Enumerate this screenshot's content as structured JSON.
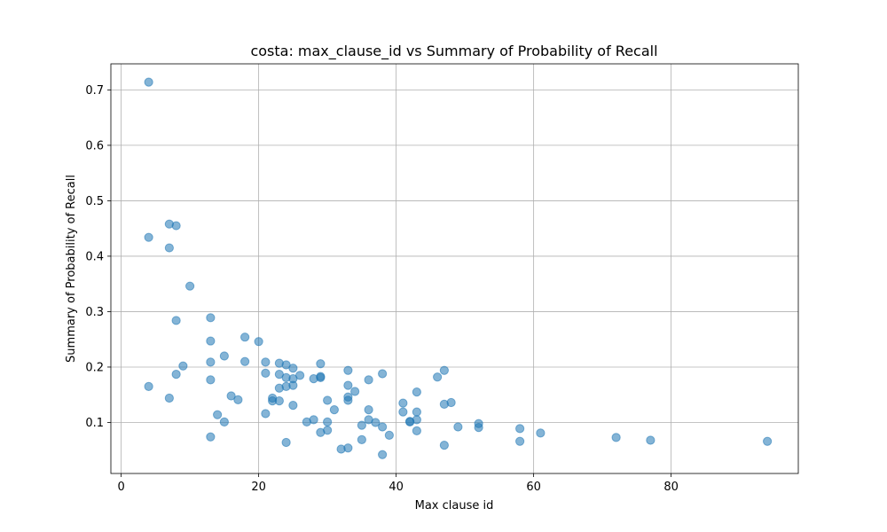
{
  "chart_data": {
    "type": "scatter",
    "title": "costa: max_clause_id vs Summary of Probability of Recall",
    "xlabel": "Max clause id",
    "ylabel": "Summary of Probability of Recall",
    "xlim": [
      -1.5,
      98.5
    ],
    "ylim": [
      0.008,
      0.747
    ],
    "xticks": [
      0,
      20,
      40,
      60,
      80
    ],
    "yticks": [
      0.1,
      0.2,
      0.3,
      0.4,
      0.5,
      0.6,
      0.7
    ],
    "grid": true,
    "marker_color": "#1f77b4",
    "marker_alpha": 0.55,
    "points": [
      {
        "x": 4,
        "y": 0.714
      },
      {
        "x": 4,
        "y": 0.434
      },
      {
        "x": 4,
        "y": 0.165
      },
      {
        "x": 7,
        "y": 0.458
      },
      {
        "x": 7,
        "y": 0.415
      },
      {
        "x": 7,
        "y": 0.144
      },
      {
        "x": 8,
        "y": 0.455
      },
      {
        "x": 8,
        "y": 0.284
      },
      {
        "x": 8,
        "y": 0.187
      },
      {
        "x": 9,
        "y": 0.202
      },
      {
        "x": 10,
        "y": 0.346
      },
      {
        "x": 13,
        "y": 0.289
      },
      {
        "x": 13,
        "y": 0.247
      },
      {
        "x": 13,
        "y": 0.209
      },
      {
        "x": 13,
        "y": 0.177
      },
      {
        "x": 13,
        "y": 0.074
      },
      {
        "x": 14,
        "y": 0.114
      },
      {
        "x": 15,
        "y": 0.22
      },
      {
        "x": 15,
        "y": 0.101
      },
      {
        "x": 16,
        "y": 0.148
      },
      {
        "x": 17,
        "y": 0.141
      },
      {
        "x": 18,
        "y": 0.254
      },
      {
        "x": 18,
        "y": 0.21
      },
      {
        "x": 20,
        "y": 0.246
      },
      {
        "x": 21,
        "y": 0.209
      },
      {
        "x": 21,
        "y": 0.189
      },
      {
        "x": 21,
        "y": 0.116
      },
      {
        "x": 22,
        "y": 0.144
      },
      {
        "x": 22,
        "y": 0.139
      },
      {
        "x": 23,
        "y": 0.207
      },
      {
        "x": 23,
        "y": 0.187
      },
      {
        "x": 23,
        "y": 0.162
      },
      {
        "x": 23,
        "y": 0.139
      },
      {
        "x": 24,
        "y": 0.204
      },
      {
        "x": 24,
        "y": 0.181
      },
      {
        "x": 24,
        "y": 0.165
      },
      {
        "x": 24,
        "y": 0.064
      },
      {
        "x": 25,
        "y": 0.198
      },
      {
        "x": 25,
        "y": 0.179
      },
      {
        "x": 25,
        "y": 0.167
      },
      {
        "x": 25,
        "y": 0.131
      },
      {
        "x": 26,
        "y": 0.185
      },
      {
        "x": 27,
        "y": 0.101
      },
      {
        "x": 28,
        "y": 0.179
      },
      {
        "x": 28,
        "y": 0.105
      },
      {
        "x": 29,
        "y": 0.206
      },
      {
        "x": 29,
        "y": 0.183
      },
      {
        "x": 29,
        "y": 0.181
      },
      {
        "x": 29,
        "y": 0.082
      },
      {
        "x": 30,
        "y": 0.14
      },
      {
        "x": 30,
        "y": 0.101
      },
      {
        "x": 30,
        "y": 0.086
      },
      {
        "x": 31,
        "y": 0.123
      },
      {
        "x": 32,
        "y": 0.052
      },
      {
        "x": 33,
        "y": 0.194
      },
      {
        "x": 33,
        "y": 0.167
      },
      {
        "x": 33,
        "y": 0.146
      },
      {
        "x": 33,
        "y": 0.14
      },
      {
        "x": 33,
        "y": 0.054
      },
      {
        "x": 34,
        "y": 0.156
      },
      {
        "x": 35,
        "y": 0.095
      },
      {
        "x": 35,
        "y": 0.069
      },
      {
        "x": 36,
        "y": 0.177
      },
      {
        "x": 36,
        "y": 0.123
      },
      {
        "x": 36,
        "y": 0.105
      },
      {
        "x": 37,
        "y": 0.1
      },
      {
        "x": 38,
        "y": 0.188
      },
      {
        "x": 38,
        "y": 0.092
      },
      {
        "x": 38,
        "y": 0.042
      },
      {
        "x": 39,
        "y": 0.077
      },
      {
        "x": 41,
        "y": 0.135
      },
      {
        "x": 41,
        "y": 0.119
      },
      {
        "x": 42,
        "y": 0.101
      },
      {
        "x": 42,
        "y": 0.102
      },
      {
        "x": 43,
        "y": 0.155
      },
      {
        "x": 43,
        "y": 0.119
      },
      {
        "x": 43,
        "y": 0.105
      },
      {
        "x": 43,
        "y": 0.085
      },
      {
        "x": 46,
        "y": 0.182
      },
      {
        "x": 47,
        "y": 0.194
      },
      {
        "x": 47,
        "y": 0.133
      },
      {
        "x": 47,
        "y": 0.059
      },
      {
        "x": 48,
        "y": 0.136
      },
      {
        "x": 49,
        "y": 0.092
      },
      {
        "x": 52,
        "y": 0.098
      },
      {
        "x": 52,
        "y": 0.091
      },
      {
        "x": 58,
        "y": 0.089
      },
      {
        "x": 58,
        "y": 0.066
      },
      {
        "x": 61,
        "y": 0.081
      },
      {
        "x": 72,
        "y": 0.073
      },
      {
        "x": 77,
        "y": 0.068
      },
      {
        "x": 94,
        "y": 0.066
      }
    ]
  }
}
